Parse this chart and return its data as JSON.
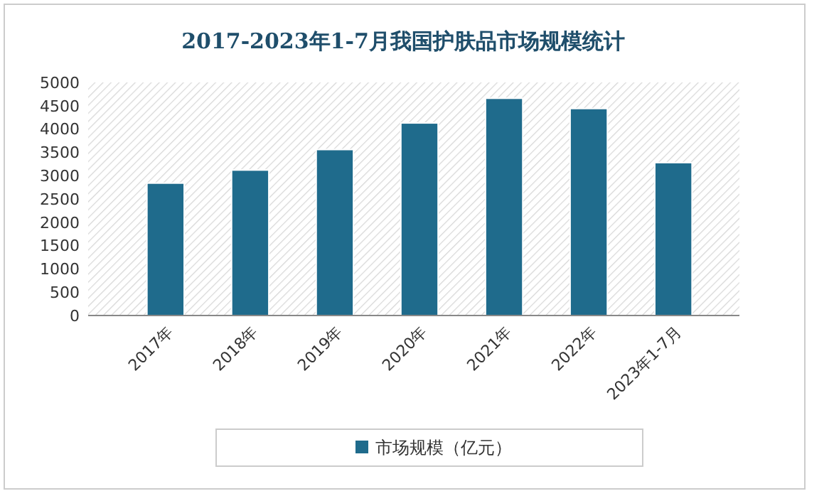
{
  "chart_data": {
    "type": "bar",
    "title": "2017-2023年1-7月我国护肤品市场规模统计",
    "categories": [
      "2017年",
      "2018年",
      "2019年",
      "2020年",
      "2021年",
      "2022年",
      "2023年1-7月"
    ],
    "series": [
      {
        "name": "市场规模（亿元）",
        "color": "#1f6b8c",
        "values": [
          2840,
          3120,
          3560,
          4130,
          4660,
          4440,
          3280
        ]
      }
    ],
    "ylim": [
      0,
      5000
    ],
    "yticks": [
      0,
      500,
      1000,
      1500,
      2000,
      2500,
      3000,
      3500,
      4000,
      4500,
      5000
    ],
    "grid": false,
    "legend": "bottom"
  }
}
